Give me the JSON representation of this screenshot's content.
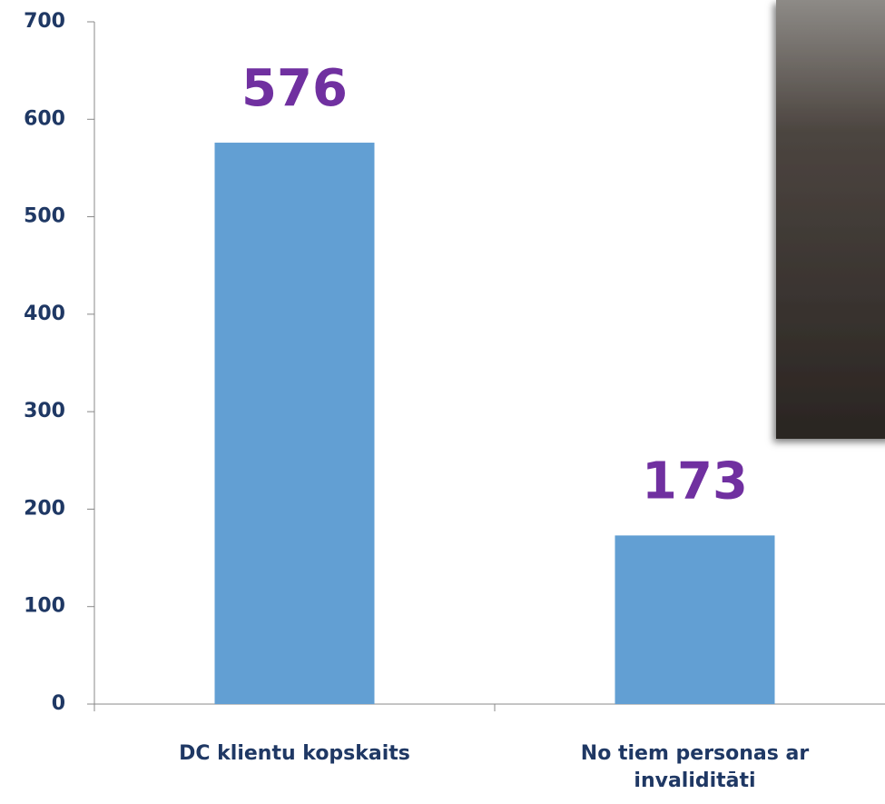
{
  "chart_data": {
    "type": "bar",
    "categories": [
      "DC klientu kopskaits",
      "No tiem personas ar invaliditāti"
    ],
    "values": [
      576,
      173
    ],
    "color": "#629fd3",
    "label_color": "#7030a0",
    "ylim": [
      0,
      700
    ],
    "yticks": [
      0,
      100,
      200,
      300,
      400,
      500,
      600,
      700
    ],
    "grid": false
  }
}
